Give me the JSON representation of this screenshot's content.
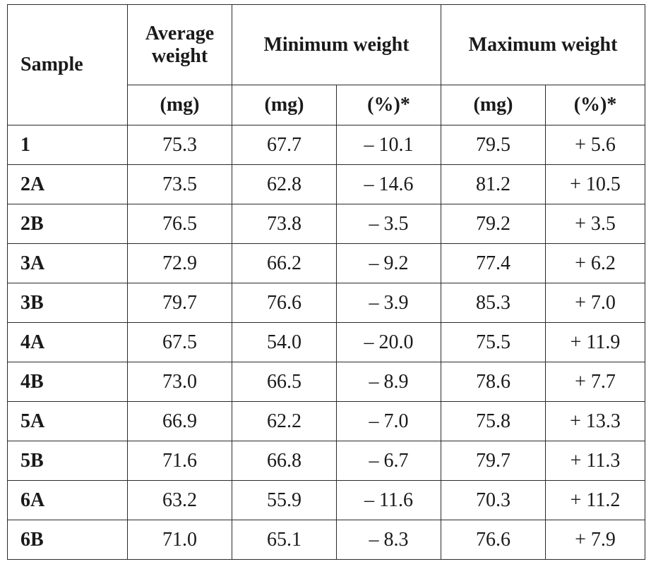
{
  "table": {
    "headers": {
      "sample": "Sample",
      "average_weight": "Average weight",
      "minimum_weight": "Minimum weight",
      "maximum_weight": "Maximum weight",
      "units": [
        "(mg)",
        "(mg)",
        "(%)*",
        "(mg)",
        "(%)*"
      ]
    },
    "rows": [
      {
        "sample": "1",
        "avg": "75.3",
        "min_mg": "67.7",
        "min_pct": "– 10.1",
        "max_mg": "79.5",
        "max_pct": "+ 5.6"
      },
      {
        "sample": "2A",
        "avg": "73.5",
        "min_mg": "62.8",
        "min_pct": "– 14.6",
        "max_mg": "81.2",
        "max_pct": "+ 10.5"
      },
      {
        "sample": "2B",
        "avg": "76.5",
        "min_mg": "73.8",
        "min_pct": "– 3.5",
        "max_mg": "79.2",
        "max_pct": "+ 3.5"
      },
      {
        "sample": "3A",
        "avg": "72.9",
        "min_mg": "66.2",
        "min_pct": "– 9.2",
        "max_mg": "77.4",
        "max_pct": "+ 6.2"
      },
      {
        "sample": "3B",
        "avg": "79.7",
        "min_mg": "76.6",
        "min_pct": "– 3.9",
        "max_mg": "85.3",
        "max_pct": "+ 7.0"
      },
      {
        "sample": "4A",
        "avg": "67.5",
        "min_mg": "54.0",
        "min_pct": "– 20.0",
        "max_mg": "75.5",
        "max_pct": "+ 11.9"
      },
      {
        "sample": "4B",
        "avg": "73.0",
        "min_mg": "66.5",
        "min_pct": "– 8.9",
        "max_mg": "78.6",
        "max_pct": "+ 7.7"
      },
      {
        "sample": "5A",
        "avg": "66.9",
        "min_mg": "62.2",
        "min_pct": "– 7.0",
        "max_mg": "75.8",
        "max_pct": "+ 13.3"
      },
      {
        "sample": "5B",
        "avg": "71.6",
        "min_mg": "66.8",
        "min_pct": "– 6.7",
        "max_mg": "79.7",
        "max_pct": "+ 11.3"
      },
      {
        "sample": "6A",
        "avg": "63.2",
        "min_mg": "55.9",
        "min_pct": "– 11.6",
        "max_mg": "70.3",
        "max_pct": "+ 11.2"
      },
      {
        "sample": "6B",
        "avg": "71.0",
        "min_mg": "65.1",
        "min_pct": "– 8.3",
        "max_mg": "76.6",
        "max_pct": "+ 7.9"
      }
    ]
  }
}
